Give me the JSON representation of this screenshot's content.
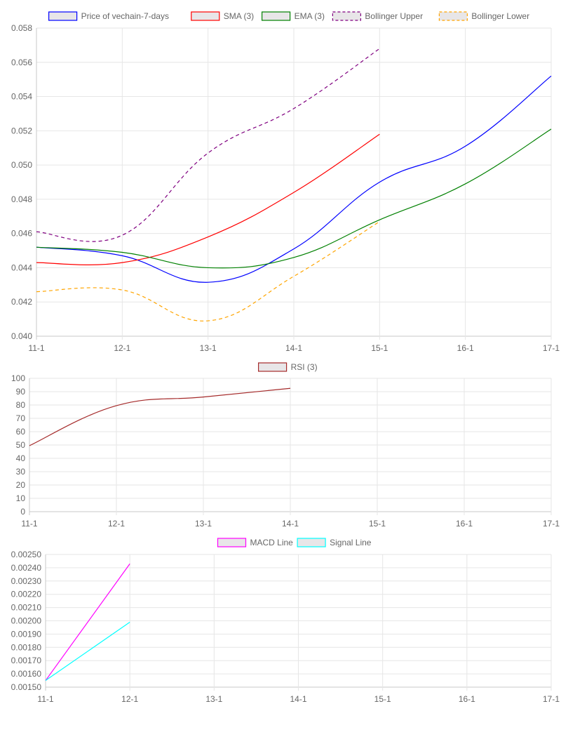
{
  "chart_data": [
    {
      "type": "line",
      "categories": [
        "11-1",
        "12-1",
        "13-1",
        "14-1",
        "15-1",
        "16-1",
        "17-1"
      ],
      "ylim": [
        0.04,
        0.058
      ],
      "ytick_step": 0.002,
      "ytick_decimals": 3,
      "legend_position": "top",
      "grid": true,
      "series": [
        {
          "name": "Price of vechain-7-days",
          "color": "#0000ff",
          "dashed": false,
          "values": [
            0.0452,
            0.0447,
            0.04315,
            0.0451,
            0.049,
            0.0511,
            0.0552
          ]
        },
        {
          "name": "SMA (3)",
          "color": "#ff0000",
          "dashed": false,
          "values": [
            0.0443,
            0.0443,
            0.0458,
            0.0484,
            0.0518,
            null,
            null
          ]
        },
        {
          "name": "EMA (3)",
          "color": "#008000",
          "dashed": false,
          "values": [
            0.0452,
            0.0449,
            0.044,
            0.0446,
            0.0468,
            0.0489,
            0.0521
          ]
        },
        {
          "name": "Bollinger Upper",
          "color": "#800080",
          "dashed": true,
          "values": [
            0.0461,
            0.0459,
            0.0507,
            0.0533,
            0.0568,
            null,
            null
          ]
        },
        {
          "name": "Bollinger Lower",
          "color": "#ffa500",
          "dashed": true,
          "values": [
            0.0426,
            0.0427,
            0.0409,
            0.0435,
            0.0467,
            null,
            null
          ]
        }
      ]
    },
    {
      "type": "line",
      "categories": [
        "11-1",
        "12-1",
        "13-1",
        "14-1",
        "15-1",
        "16-1",
        "17-1"
      ],
      "ylim": [
        0,
        100
      ],
      "ytick_step": 10,
      "ytick_decimals": 0,
      "legend_position": "top",
      "grid": true,
      "series": [
        {
          "name": "RSI (3)",
          "color": "#a52a2a",
          "dashed": false,
          "values": [
            49.5,
            79.5,
            86,
            92.5,
            null,
            null,
            null
          ]
        }
      ]
    },
    {
      "type": "line",
      "categories": [
        "11-1",
        "12-1",
        "13-1",
        "14-1",
        "15-1",
        "16-1",
        "17-1"
      ],
      "ylim": [
        0.0015,
        0.0025
      ],
      "ytick_step": 0.0001,
      "ytick_decimals": 5,
      "legend_position": "top",
      "grid": true,
      "series": [
        {
          "name": "MACD Line",
          "color": "#ff00ff",
          "dashed": false,
          "values": [
            0.00155,
            0.00243,
            null,
            null,
            null,
            null,
            null
          ]
        },
        {
          "name": "Signal Line",
          "color": "#00ffff",
          "dashed": false,
          "values": [
            0.00155,
            0.00199,
            null,
            null,
            null,
            null,
            null
          ]
        }
      ]
    }
  ]
}
